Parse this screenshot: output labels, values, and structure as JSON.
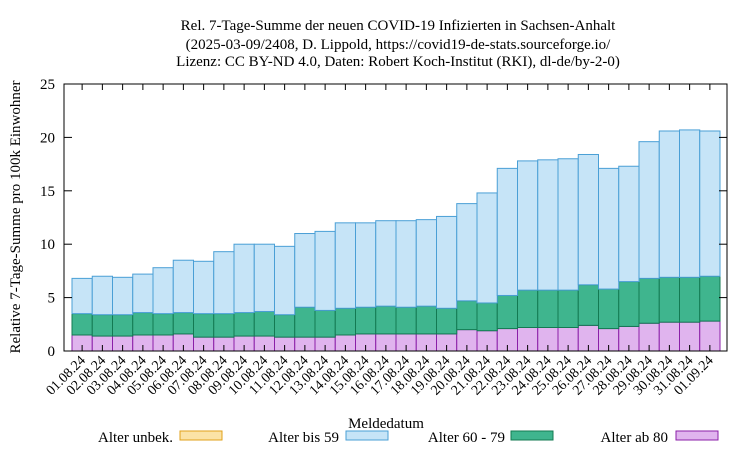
{
  "chart_data": {
    "type": "bar",
    "stacked": true,
    "title": [
      "Rel. 7-Tage-Summe der neuen COVID-19 Infizierten in Sachsen-Anhalt",
      "(2025-03-09/2408, D. Lippold, https://covid19-de-stats.sourceforge.io/",
      "Lizenz: CC BY-ND 4.0, Daten: Robert Koch-Institut (RKI), dl-de/by-2-0)"
    ],
    "xlabel": "Meldedatum",
    "ylabel": "Relative 7-Tage-Summe pro 100k Einwohner",
    "ylim": [
      0,
      25
    ],
    "yticks": [
      0,
      5,
      10,
      15,
      20,
      25
    ],
    "grid": false,
    "legend_position": "bottom",
    "categories": [
      "01.08.24",
      "02.08.24",
      "03.08.24",
      "04.08.24",
      "05.08.24",
      "06.08.24",
      "07.08.24",
      "08.08.24",
      "09.08.24",
      "10.08.24",
      "11.08.24",
      "12.08.24",
      "13.08.24",
      "14.08.24",
      "15.08.24",
      "16.08.24",
      "17.08.24",
      "18.08.24",
      "19.08.24",
      "20.08.24",
      "21.08.24",
      "22.08.24",
      "23.08.24",
      "24.08.24",
      "25.08.24",
      "26.08.24",
      "27.08.24",
      "28.08.24",
      "29.08.24",
      "30.08.24",
      "31.08.24",
      "01.09.24"
    ],
    "series": [
      {
        "name": "Alter ab 80",
        "color": "#e0b4ee",
        "stroke": "#8b1fa8",
        "values": [
          1.5,
          1.4,
          1.4,
          1.5,
          1.5,
          1.6,
          1.3,
          1.3,
          1.4,
          1.4,
          1.3,
          1.3,
          1.3,
          1.5,
          1.6,
          1.6,
          1.6,
          1.6,
          1.6,
          2.0,
          1.9,
          2.1,
          2.2,
          2.2,
          2.2,
          2.4,
          2.1,
          2.3,
          2.6,
          2.7,
          2.7,
          2.8
        ]
      },
      {
        "name": "Alter 60 - 79",
        "color": "#3fb58e",
        "stroke": "#137a52",
        "values": [
          2.0,
          2.0,
          2.0,
          2.1,
          2.0,
          2.0,
          2.2,
          2.2,
          2.2,
          2.3,
          2.1,
          2.8,
          2.5,
          2.5,
          2.5,
          2.6,
          2.5,
          2.6,
          2.4,
          2.7,
          2.6,
          3.1,
          3.5,
          3.5,
          3.5,
          3.8,
          3.7,
          4.2,
          4.2,
          4.2,
          4.2,
          4.2
        ]
      },
      {
        "name": "Alter bis 59",
        "color": "#c6e4f7",
        "stroke": "#4a9fd6",
        "values": [
          3.3,
          3.6,
          3.5,
          3.6,
          4.3,
          4.9,
          4.9,
          5.8,
          6.4,
          6.3,
          6.4,
          6.9,
          7.4,
          8.0,
          7.9,
          8.0,
          8.1,
          8.1,
          8.6,
          9.1,
          10.3,
          11.9,
          12.1,
          12.2,
          12.3,
          12.2,
          11.3,
          10.8,
          12.8,
          13.7,
          13.8,
          13.6
        ]
      },
      {
        "name": "Alter unbek.",
        "color": "#fbe3a6",
        "stroke": "#e0a21a",
        "values": [
          0,
          0,
          0,
          0,
          0,
          0,
          0,
          0,
          0,
          0,
          0,
          0,
          0,
          0,
          0,
          0,
          0,
          0,
          0,
          0,
          0,
          0,
          0,
          0,
          0,
          0,
          0,
          0,
          0,
          0,
          0,
          0
        ]
      }
    ],
    "legend": [
      "Alter unbek.",
      "Alter bis 59",
      "Alter 60 - 79",
      "Alter ab 80"
    ]
  }
}
